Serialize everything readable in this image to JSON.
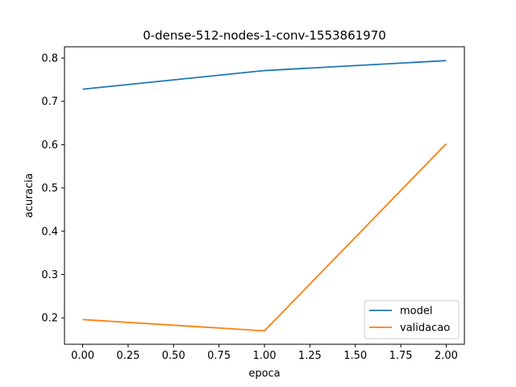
{
  "chart_data": {
    "type": "line",
    "title": "0-dense-512-nodes-1-conv-1553861970",
    "xlabel": "epoca",
    "ylabel": "acuracia",
    "x": [
      0,
      1,
      2
    ],
    "series": [
      {
        "name": "model",
        "values": [
          0.728,
          0.771,
          0.794
        ],
        "color": "#1f77b4"
      },
      {
        "name": "validacao",
        "values": [
          0.196,
          0.17,
          0.602
        ],
        "color": "#ff7f0e"
      }
    ],
    "xlim": [
      -0.1,
      2.1
    ],
    "ylim": [
      0.139,
      0.826
    ],
    "xticks": [
      "0.00",
      "0.25",
      "0.50",
      "0.75",
      "1.00",
      "1.25",
      "1.50",
      "1.75",
      "2.00"
    ],
    "yticks": [
      "0.2",
      "0.3",
      "0.4",
      "0.5",
      "0.6",
      "0.7",
      "0.8"
    ],
    "grid": false,
    "legend_position": "lower-right"
  }
}
